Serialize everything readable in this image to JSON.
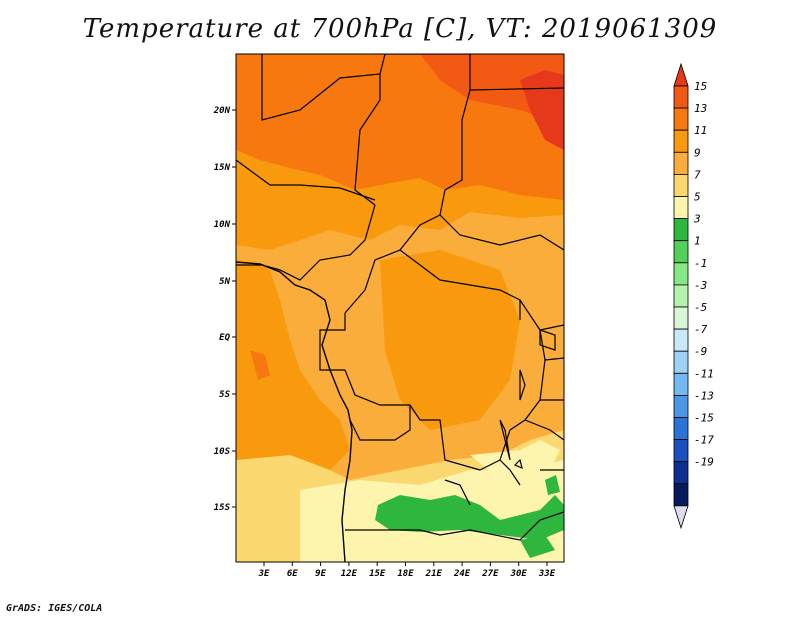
{
  "title": "Temperature at 700hPa [C], VT: 2019061309",
  "footer": "GrADS: IGES/COLA",
  "map": {
    "lat_labels": [
      "20N",
      "15N",
      "10N",
      "5N",
      "EQ",
      "5S",
      "10S",
      "15S"
    ],
    "lon_labels": [
      "3E",
      "6E",
      "9E",
      "12E",
      "15E",
      "18E",
      "21E",
      "24E",
      "27E",
      "30E",
      "33E"
    ]
  },
  "colorbar": {
    "labels": [
      "15",
      "13",
      "11",
      "9",
      "7",
      "5",
      "3",
      "1",
      "-1",
      "-3",
      "-5",
      "-7",
      "-9",
      "-11",
      "-13",
      "-15",
      "-17",
      "-19"
    ],
    "colors": [
      "#e6391c",
      "#f25a14",
      "#f7780f",
      "#f9990d",
      "#faad3a",
      "#fbd770",
      "#fdf4ae",
      "#2fb63f",
      "#52d15a",
      "#86e785",
      "#b3f3ac",
      "#d9f7d6",
      "#c9e8f8",
      "#9fd1f5",
      "#75b7ef",
      "#4b97e5",
      "#2a74d8",
      "#1a50bd",
      "#0e2e94",
      "#081a5e",
      "#dcdcf0"
    ]
  }
}
